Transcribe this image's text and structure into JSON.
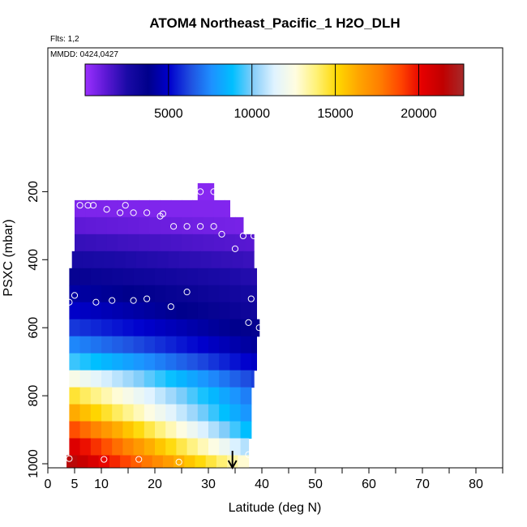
{
  "chart_data": {
    "type": "heatmap",
    "title": "ATOM4 Northeast_Pacific_1 H2O_DLH",
    "subtitle_lines": [
      "Flts: 1,2",
      "MMDD: 0424,0427"
    ],
    "xlabel": "Latitude (deg N)",
    "ylabel": "PSXC (mbar)",
    "xlim": [
      0,
      85
    ],
    "ylim": [
      1000,
      0
    ],
    "x_ticks": [
      0,
      5,
      10,
      20,
      30,
      40,
      50,
      60,
      70,
      80
    ],
    "x_minor_ticks": [
      15,
      25,
      35,
      45,
      55,
      65,
      75,
      85
    ],
    "y_ticks": [
      200,
      400,
      600,
      800,
      1000
    ],
    "colorbar": {
      "range": [
        0,
        22700
      ],
      "ticks": [
        5000,
        10000,
        15000,
        20000
      ],
      "colors": [
        "#9b30ff",
        "#5b18d4",
        "#1a0aa6",
        "#00008b",
        "#0000cd",
        "#1f4fe0",
        "#1e90ff",
        "#00bfff",
        "#87cefa",
        "#e0f3ff",
        "#fffde0",
        "#fff176",
        "#ffd700",
        "#ffa500",
        "#ff7f00",
        "#ff4500",
        "#e60000",
        "#c00000",
        "#a52a2a"
      ]
    },
    "grid": false,
    "legend": "colorbar-top",
    "levels": [
      {
        "p": 200,
        "x0": 28.0,
        "x1": 31.0,
        "v0": 400,
        "v1": 400
      },
      {
        "p": 250,
        "x0": 5.0,
        "x1": 34.0,
        "v0": 600,
        "v1": 500
      },
      {
        "p": 300,
        "x0": 5.0,
        "x1": 36.5,
        "v0": 1200,
        "v1": 700
      },
      {
        "p": 350,
        "x0": 5.0,
        "x1": 38.5,
        "v0": 2000,
        "v1": 1300
      },
      {
        "p": 400,
        "x0": 4.5,
        "x1": 38.5,
        "v0": 2700,
        "v1": 1900
      },
      {
        "p": 450,
        "x0": 4.0,
        "x1": 39.0,
        "v0": 3500,
        "v1": 2300
      },
      {
        "p": 500,
        "x0": 4.0,
        "x1": 39.0,
        "v0": 4300,
        "v1": 2700
      },
      {
        "p": 550,
        "x0": 4.0,
        "x1": 39.0,
        "v0": 5000,
        "v1": 3000
      },
      {
        "p": 600,
        "x0": 4.0,
        "x1": 39.5,
        "v0": 6000,
        "v1": 3500
      },
      {
        "p": 650,
        "x0": 4.0,
        "x1": 39.0,
        "v0": 7500,
        "v1": 4000
      },
      {
        "p": 700,
        "x0": 4.0,
        "x1": 39.0,
        "v0": 9500,
        "v1": 4800
      },
      {
        "p": 750,
        "x0": 4.0,
        "x1": 38.5,
        "v0": 12500,
        "v1": 6000
      },
      {
        "p": 800,
        "x0": 4.0,
        "x1": 38.0,
        "v0": 14800,
        "v1": 7000
      },
      {
        "p": 850,
        "x0": 4.0,
        "x1": 38.0,
        "v0": 16500,
        "v1": 7500
      },
      {
        "p": 900,
        "x0": 4.0,
        "x1": 38.0,
        "v0": 19000,
        "v1": 8500
      },
      {
        "p": 950,
        "x0": 4.0,
        "x1": 37.5,
        "v0": 20800,
        "v1": 10500
      },
      {
        "p": 1000,
        "x0": 3.5,
        "x1": 37.5,
        "v0": 22000,
        "v1": 12500
      }
    ],
    "points": [
      {
        "x": 28.5,
        "y": 200
      },
      {
        "x": 31.0,
        "y": 200
      },
      {
        "x": 6.0,
        "y": 240
      },
      {
        "x": 7.5,
        "y": 240
      },
      {
        "x": 8.5,
        "y": 240
      },
      {
        "x": 14.5,
        "y": 240
      },
      {
        "x": 11.0,
        "y": 252
      },
      {
        "x": 13.5,
        "y": 262
      },
      {
        "x": 16.0,
        "y": 262
      },
      {
        "x": 18.5,
        "y": 262
      },
      {
        "x": 21.0,
        "y": 272
      },
      {
        "x": 21.5,
        "y": 265
      },
      {
        "x": 23.5,
        "y": 302
      },
      {
        "x": 26.0,
        "y": 302
      },
      {
        "x": 28.5,
        "y": 302
      },
      {
        "x": 31.0,
        "y": 302
      },
      {
        "x": 32.5,
        "y": 325
      },
      {
        "x": 36.5,
        "y": 330
      },
      {
        "x": 38.5,
        "y": 330
      },
      {
        "x": 35.0,
        "y": 368
      },
      {
        "x": 5.0,
        "y": 505
      },
      {
        "x": 4.0,
        "y": 525
      },
      {
        "x": 9.0,
        "y": 525
      },
      {
        "x": 12.0,
        "y": 520
      },
      {
        "x": 16.0,
        "y": 520
      },
      {
        "x": 18.5,
        "y": 515
      },
      {
        "x": 23.0,
        "y": 538
      },
      {
        "x": 26.0,
        "y": 495
      },
      {
        "x": 38.0,
        "y": 515
      },
      {
        "x": 37.5,
        "y": 585
      },
      {
        "x": 39.5,
        "y": 600
      },
      {
        "x": 4.0,
        "y": 985
      },
      {
        "x": 10.5,
        "y": 987
      },
      {
        "x": 17.0,
        "y": 987
      },
      {
        "x": 24.5,
        "y": 995
      },
      {
        "x": 37.5,
        "y": 973
      }
    ],
    "marker": {
      "x": 34.5,
      "direction": "down"
    }
  }
}
